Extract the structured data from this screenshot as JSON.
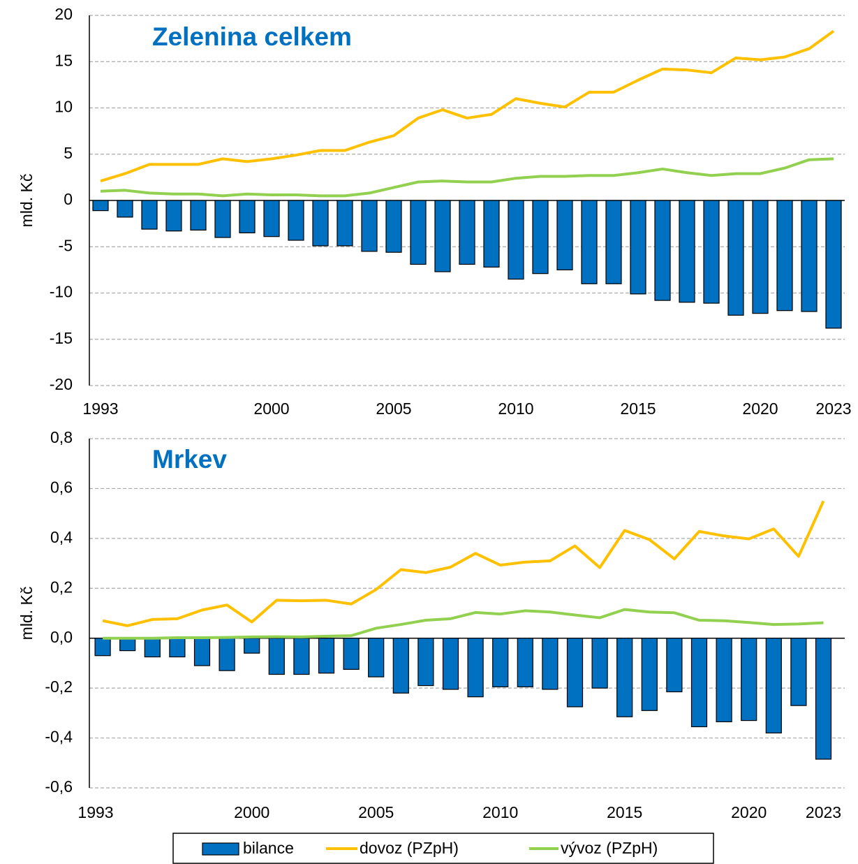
{
  "chart_data": [
    {
      "type": "combo",
      "title": "Zelenina celkem",
      "ylabel": "mld. Kč",
      "categories": [
        "1993",
        null,
        null,
        null,
        null,
        null,
        null,
        "2000",
        null,
        null,
        null,
        null,
        "2005",
        null,
        null,
        null,
        null,
        "2010",
        null,
        null,
        null,
        null,
        "2015",
        null,
        null,
        null,
        null,
        "2020",
        null,
        null,
        "2023"
      ],
      "series": [
        {
          "name": "bilance",
          "type": "bar",
          "color": "#0070c0",
          "values": [
            -1.1,
            -1.8,
            -3.1,
            -3.3,
            -3.2,
            -4.0,
            -3.5,
            -3.9,
            -4.3,
            -4.9,
            -4.9,
            -5.5,
            -5.6,
            -6.9,
            -7.7,
            -6.9,
            -7.2,
            -8.5,
            -7.9,
            -7.5,
            -9.0,
            -9.0,
            -10.1,
            -10.8,
            -11.0,
            -11.1,
            -12.4,
            -12.2,
            -11.9,
            -12.0,
            -13.8
          ]
        },
        {
          "name": "dovoz (PZpH)",
          "type": "line",
          "color": "#ffc000",
          "values": [
            2.1,
            2.9,
            3.9,
            3.9,
            3.9,
            4.5,
            4.2,
            4.5,
            4.9,
            5.4,
            5.4,
            6.3,
            7.0,
            8.9,
            9.8,
            8.9,
            9.3,
            11.0,
            10.5,
            10.1,
            11.7,
            11.7,
            13.0,
            14.2,
            14.1,
            13.8,
            15.4,
            15.2,
            15.5,
            16.4,
            18.3
          ]
        },
        {
          "name": "vývoz (PZpH)",
          "type": "line",
          "color": "#92d050",
          "values": [
            1.0,
            1.1,
            0.8,
            0.7,
            0.7,
            0.5,
            0.7,
            0.6,
            0.6,
            0.5,
            0.5,
            0.8,
            1.4,
            2.0,
            2.1,
            2.0,
            2.0,
            2.4,
            2.6,
            2.6,
            2.7,
            2.7,
            3.0,
            3.4,
            3.0,
            2.7,
            2.9,
            2.9,
            3.5,
            4.4,
            4.5
          ]
        }
      ],
      "ylim": [
        -20,
        20
      ],
      "yticks": [
        -20,
        -15,
        -10,
        -5,
        0,
        5,
        10,
        15,
        20
      ],
      "grid": true
    },
    {
      "type": "combo",
      "title": "Mrkev",
      "ylabel": "mld. Kč",
      "categories": [
        "1993",
        null,
        null,
        null,
        null,
        null,
        null,
        "2000",
        null,
        null,
        null,
        null,
        "2005",
        null,
        null,
        null,
        null,
        "2010",
        null,
        null,
        null,
        null,
        "2015",
        null,
        null,
        null,
        null,
        "2020",
        null,
        null,
        "2023"
      ],
      "series": [
        {
          "type": "bar",
          "color": "#0070c0",
          "values": [
            null,
            -0.07,
            -0.05,
            -0.075,
            -0.075,
            -0.11,
            -0.13,
            -0.06,
            -0.145,
            -0.145,
            -0.14,
            -0.125,
            -0.155,
            -0.22,
            -0.19,
            -0.205,
            -0.235,
            -0.195,
            -0.195,
            -0.205,
            -0.275,
            -0.2,
            -0.315,
            -0.29,
            -0.215,
            -0.355,
            -0.335,
            -0.33,
            -0.38,
            -0.27,
            -0.485
          ]
        },
        {
          "type": "line",
          "color": "#ffc000",
          "values": [
            null,
            0.07,
            0.05,
            0.075,
            0.078,
            0.113,
            0.133,
            0.065,
            0.152,
            0.15,
            0.152,
            0.137,
            0.195,
            0.275,
            0.263,
            0.285,
            0.34,
            0.293,
            0.305,
            0.31,
            0.37,
            0.283,
            0.432,
            0.395,
            0.318,
            0.428,
            0.41,
            0.398,
            0.438,
            0.328,
            0.55
          ]
        },
        {
          "type": "line",
          "color": "#92d050",
          "values": [
            null,
            0.0,
            0.0,
            0.0,
            0.002,
            0.002,
            0.003,
            0.005,
            0.006,
            0.005,
            0.008,
            0.01,
            0.04,
            0.055,
            0.072,
            0.078,
            0.103,
            0.097,
            0.11,
            0.105,
            0.093,
            0.082,
            0.115,
            0.105,
            0.102,
            0.072,
            0.07,
            0.063,
            0.055,
            0.057,
            0.062
          ]
        }
      ],
      "ylim": [
        -0.6,
        0.8
      ],
      "yticks": [
        {
          "value": -0.6,
          "label": "-0,6"
        },
        {
          "value": -0.4,
          "label": "-0,4"
        },
        {
          "value": -0.2,
          "label": "-0,2"
        },
        {
          "value": 0,
          "label": "0,0"
        },
        {
          "value": 0.2,
          "label": "0,2"
        },
        {
          "value": 0.4,
          "label": "0,4"
        },
        {
          "value": 0.6,
          "label": "0,6"
        },
        {
          "value": 0.8,
          "label": "0,8"
        }
      ],
      "grid": true
    }
  ]
}
